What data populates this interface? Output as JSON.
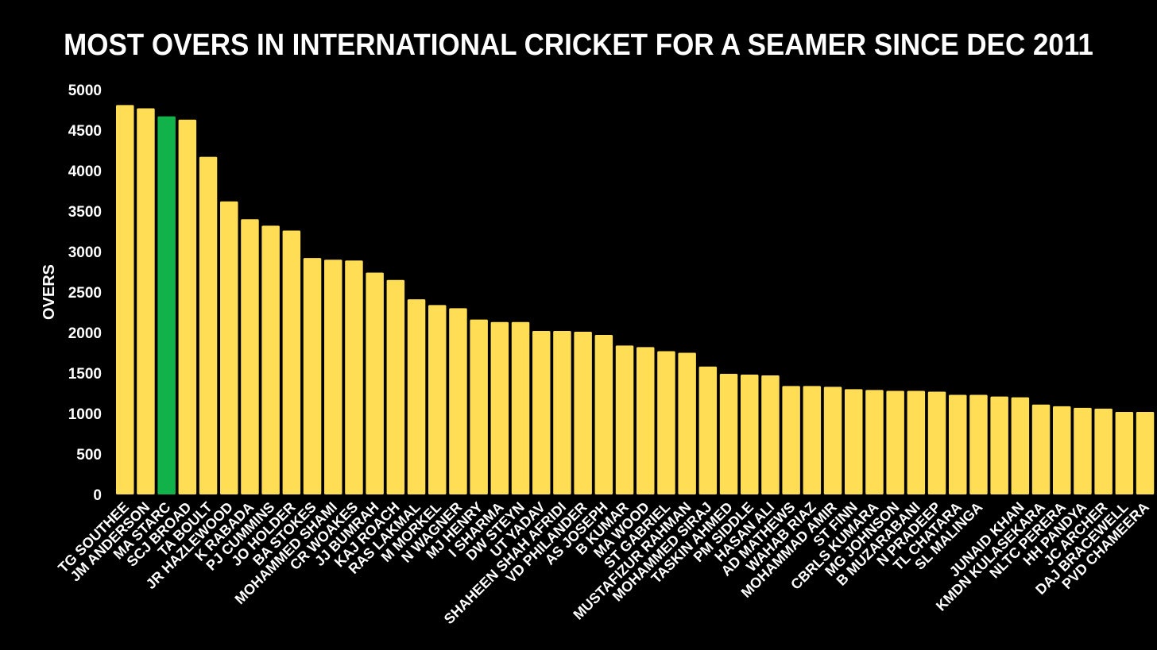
{
  "chart_data": {
    "type": "bar",
    "title": "MOST OVERS IN INTERNATIONAL CRICKET FOR A SEAMER SINCE DEC 2011",
    "xlabel": "",
    "ylabel": "OVERS",
    "ylim": [
      0,
      5000
    ],
    "yticks": [
      "0",
      "500",
      "1000",
      "1500",
      "2000",
      "2500",
      "3000",
      "3500",
      "4000",
      "4500",
      "5000"
    ],
    "grid": false,
    "colors": {
      "default": "#FFDD55",
      "highlight": "#12B24B",
      "background": "#000000",
      "text": "#FFFFFF"
    },
    "highlight_index": 2,
    "categories": [
      "TG SOUTHEE",
      "JM ANDERSON",
      "MA STARC",
      "SCJ BROAD",
      "TA BOULT",
      "JR HAZLEWOOD",
      "K RABADA",
      "PJ CUMMINS",
      "JO HOLDER",
      "BA STOKES",
      "MOHAMMED SHAMI",
      "CR WOAKES",
      "JJ BUMRAH",
      "KAJ ROACH",
      "RAS LAKMAL",
      "M MORKEL",
      "N WAGNER",
      "MJ HENRY",
      "I SHARMA",
      "DW STEYN",
      "UT YADAV",
      "SHAHEEN SHAH AFRIDI",
      "VD PHILANDER",
      "AS JOSEPH",
      "B KUMAR",
      "MA WOOD",
      "ST GABRIEL",
      "MUSTAFIZUR RAHMAN",
      "MOHAMMED SIRAJ",
      "TASKIN AHMED",
      "PM SIDDLE",
      "HASAN ALI",
      "AD MATHEWS",
      "WAHAB RIAZ",
      "MOHAMMAD AMIR",
      "ST FINN",
      "CBRLS KUMARA",
      "MG JOHNSON",
      "B MUZARABANI",
      "N PRADEEP",
      "TL CHATARA",
      "SL MALINGA",
      "",
      "JUNAID KHAN",
      "KMDN KULASEKARA",
      "NLTC PERERA",
      "HH PANDYA",
      "JC ARCHER",
      "DAJ BRACEWELL",
      "PVD CHAMEERA"
    ],
    "values": [
      4810,
      4770,
      4670,
      4630,
      4170,
      3620,
      3400,
      3320,
      3260,
      2920,
      2900,
      2890,
      2740,
      2650,
      2410,
      2340,
      2300,
      2160,
      2130,
      2130,
      2020,
      2020,
      2010,
      1970,
      1840,
      1820,
      1770,
      1750,
      1580,
      1490,
      1480,
      1470,
      1340,
      1340,
      1330,
      1300,
      1290,
      1280,
      1280,
      1270,
      1230,
      1230,
      1210,
      1200,
      1110,
      1090,
      1070,
      1060,
      1020,
      1020
    ]
  }
}
